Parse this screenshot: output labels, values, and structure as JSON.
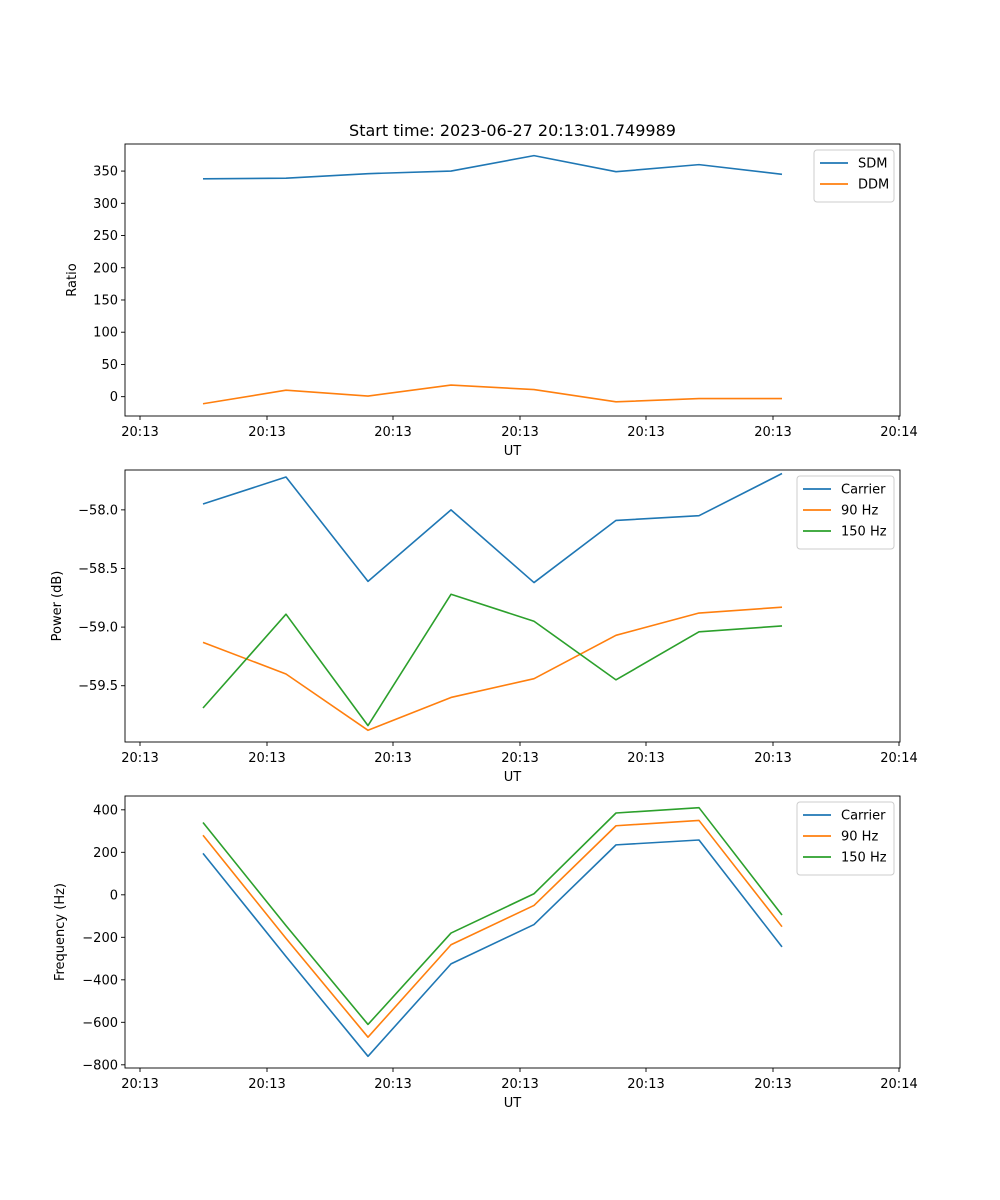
{
  "chart_data": [
    {
      "type": "line",
      "title": "Start time: 2023-06-27 20:13:01.749989",
      "xlabel": "UT",
      "ylabel": "Ratio",
      "x_tick_labels": [
        "20:13",
        "20:13",
        "20:13",
        "20:13",
        "20:13",
        "20:13",
        "20:14"
      ],
      "ylim": [
        -30,
        392
      ],
      "yticks": [
        0,
        50,
        100,
        150,
        200,
        250,
        300,
        350
      ],
      "legend_position": "top-right",
      "grid": false,
      "series": [
        {
          "name": "SDM",
          "color": "#1f77b4",
          "values": [
            338,
            339,
            346,
            350,
            374,
            349,
            360,
            345
          ]
        },
        {
          "name": "DDM",
          "color": "#ff7f0e",
          "values": [
            -11,
            10,
            1,
            18,
            11,
            -8,
            -3,
            -3
          ]
        }
      ]
    },
    {
      "type": "line",
      "xlabel": "UT",
      "ylabel": "Power (dB)",
      "x_tick_labels": [
        "20:13",
        "20:13",
        "20:13",
        "20:13",
        "20:13",
        "20:13",
        "20:14"
      ],
      "ylim": [
        -59.98,
        -57.66
      ],
      "yticks": [
        -59.5,
        -59.0,
        -58.5,
        -58.0
      ],
      "ytick_labels": [
        "−59.5",
        "−59.0",
        "−58.5",
        "−58.0"
      ],
      "legend_position": "top-right",
      "grid": false,
      "series": [
        {
          "name": "Carrier",
          "color": "#1f77b4",
          "values": [
            -57.95,
            -57.72,
            -58.61,
            -58.0,
            -58.62,
            -58.09,
            -58.05,
            -57.69
          ]
        },
        {
          "name": "90 Hz",
          "color": "#ff7f0e",
          "values": [
            -59.13,
            -59.4,
            -59.88,
            -59.6,
            -59.44,
            -59.07,
            -58.88,
            -58.83
          ]
        },
        {
          "name": "150 Hz",
          "color": "#2ca02c",
          "values": [
            -59.69,
            -58.89,
            -59.84,
            -58.72,
            -58.95,
            -59.45,
            -59.04,
            -58.99
          ]
        }
      ]
    },
    {
      "type": "line",
      "xlabel": "UT",
      "ylabel": "Frequency (Hz)",
      "x_tick_labels": [
        "20:13",
        "20:13",
        "20:13",
        "20:13",
        "20:13",
        "20:13",
        "20:14"
      ],
      "ylim": [
        -815,
        465
      ],
      "yticks": [
        -800,
        -600,
        -400,
        -200,
        0,
        200,
        400
      ],
      "ytick_labels": [
        "−800",
        "−600",
        "−400",
        "−200",
        "0",
        "200",
        "400"
      ],
      "legend_position": "top-right",
      "grid": false,
      "series": [
        {
          "name": "Carrier",
          "color": "#1f77b4",
          "values": [
            195,
            -290,
            -760,
            -325,
            -140,
            235,
            258,
            -245
          ]
        },
        {
          "name": "90 Hz",
          "color": "#ff7f0e",
          "values": [
            280,
            -205,
            -670,
            -235,
            -50,
            325,
            350,
            -150
          ]
        },
        {
          "name": "150 Hz",
          "color": "#2ca02c",
          "values": [
            340,
            -145,
            -610,
            -180,
            5,
            385,
            410,
            -95
          ]
        }
      ]
    }
  ]
}
